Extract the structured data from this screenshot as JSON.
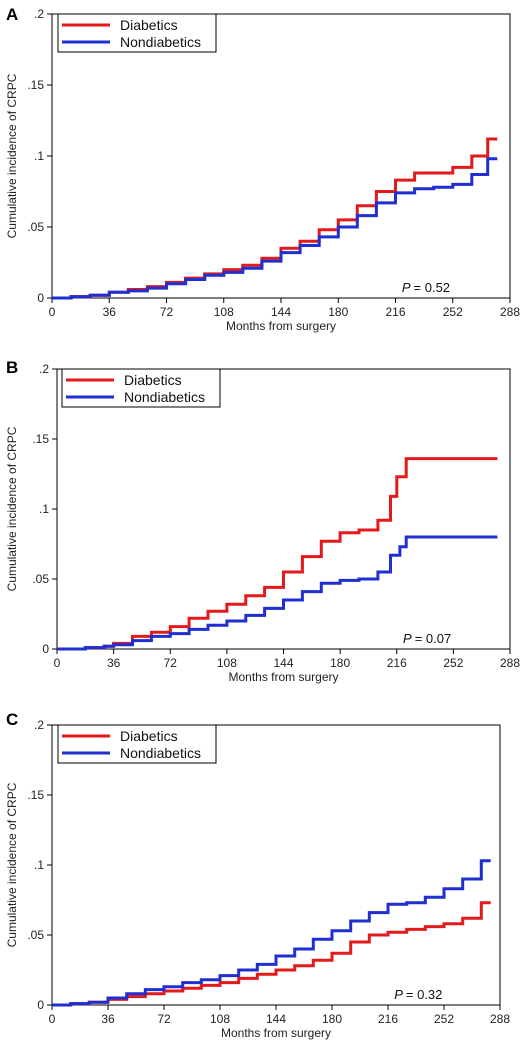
{
  "chart_data": [
    {
      "panel": "A",
      "type": "line",
      "step": true,
      "xlabel": "Months from surgery",
      "ylabel": "Cumulative incidence of CRPC",
      "xticks": [
        "0",
        "36",
        "72",
        "108",
        "144",
        "180",
        "216",
        "252",
        "288"
      ],
      "yticks": [
        "0",
        ".05",
        ".1",
        ".15",
        ".2"
      ],
      "xlim": [
        0,
        288
      ],
      "ylim": [
        0,
        0.2
      ],
      "grid": false,
      "legend_position": "top-left",
      "p_label": "P",
      "p_value": "= 0.52",
      "series": [
        {
          "name": "Diabetics",
          "color": "#e31a1c",
          "points": [
            [
              0,
              0
            ],
            [
              12,
              0.001
            ],
            [
              24,
              0.002
            ],
            [
              36,
              0.004
            ],
            [
              48,
              0.006
            ],
            [
              60,
              0.008
            ],
            [
              72,
              0.011
            ],
            [
              84,
              0.014
            ],
            [
              96,
              0.017
            ],
            [
              108,
              0.02
            ],
            [
              120,
              0.023
            ],
            [
              132,
              0.028
            ],
            [
              144,
              0.035
            ],
            [
              156,
              0.04
            ],
            [
              168,
              0.048
            ],
            [
              180,
              0.055
            ],
            [
              192,
              0.065
            ],
            [
              204,
              0.075
            ],
            [
              216,
              0.083
            ],
            [
              228,
              0.088
            ],
            [
              240,
              0.088
            ],
            [
              252,
              0.092
            ],
            [
              264,
              0.1
            ],
            [
              274,
              0.112
            ],
            [
              280,
              0.112
            ]
          ]
        },
        {
          "name": "Nondiabetics",
          "color": "#1f2fd1",
          "points": [
            [
              0,
              0
            ],
            [
              12,
              0.001
            ],
            [
              24,
              0.002
            ],
            [
              36,
              0.004
            ],
            [
              48,
              0.005
            ],
            [
              60,
              0.007
            ],
            [
              72,
              0.01
            ],
            [
              84,
              0.013
            ],
            [
              96,
              0.016
            ],
            [
              108,
              0.018
            ],
            [
              120,
              0.021
            ],
            [
              132,
              0.026
            ],
            [
              144,
              0.032
            ],
            [
              156,
              0.037
            ],
            [
              168,
              0.043
            ],
            [
              180,
              0.05
            ],
            [
              192,
              0.058
            ],
            [
              204,
              0.067
            ],
            [
              216,
              0.074
            ],
            [
              228,
              0.077
            ],
            [
              240,
              0.078
            ],
            [
              252,
              0.08
            ],
            [
              264,
              0.087
            ],
            [
              274,
              0.098
            ],
            [
              280,
              0.098
            ]
          ]
        }
      ]
    },
    {
      "panel": "B",
      "type": "line",
      "step": true,
      "xlabel": "Months from surgery",
      "ylabel": "Cumulative incidence of CRPC",
      "xticks": [
        "0",
        "36",
        "72",
        "108",
        "144",
        "180",
        "216",
        "252",
        "288"
      ],
      "yticks": [
        "0",
        ".05",
        ".1",
        ".15",
        ".2"
      ],
      "xlim": [
        0,
        288
      ],
      "ylim": [
        0,
        0.2
      ],
      "grid": false,
      "legend_position": "top-left",
      "p_label": "P",
      "p_value": "= 0.07",
      "series": [
        {
          "name": "Diabetics",
          "color": "#e31a1c",
          "points": [
            [
              0,
              0
            ],
            [
              18,
              0.001
            ],
            [
              30,
              0.002
            ],
            [
              36,
              0.004
            ],
            [
              48,
              0.009
            ],
            [
              60,
              0.012
            ],
            [
              72,
              0.016
            ],
            [
              84,
              0.022
            ],
            [
              96,
              0.027
            ],
            [
              108,
              0.032
            ],
            [
              120,
              0.038
            ],
            [
              132,
              0.044
            ],
            [
              144,
              0.055
            ],
            [
              156,
              0.066
            ],
            [
              168,
              0.077
            ],
            [
              180,
              0.083
            ],
            [
              192,
              0.085
            ],
            [
              204,
              0.092
            ],
            [
              212,
              0.109
            ],
            [
              216,
              0.123
            ],
            [
              222,
              0.136
            ],
            [
              234,
              0.136
            ],
            [
              250,
              0.136
            ],
            [
              270,
              0.136
            ],
            [
              280,
              0.136
            ]
          ]
        },
        {
          "name": "Nondiabetics",
          "color": "#1f2fd1",
          "points": [
            [
              0,
              0
            ],
            [
              18,
              0.001
            ],
            [
              30,
              0.002
            ],
            [
              36,
              0.003
            ],
            [
              48,
              0.006
            ],
            [
              60,
              0.009
            ],
            [
              72,
              0.011
            ],
            [
              84,
              0.014
            ],
            [
              96,
              0.017
            ],
            [
              108,
              0.02
            ],
            [
              120,
              0.024
            ],
            [
              132,
              0.029
            ],
            [
              144,
              0.035
            ],
            [
              156,
              0.041
            ],
            [
              168,
              0.047
            ],
            [
              180,
              0.049
            ],
            [
              192,
              0.05
            ],
            [
              204,
              0.055
            ],
            [
              212,
              0.067
            ],
            [
              218,
              0.073
            ],
            [
              222,
              0.08
            ],
            [
              234,
              0.08
            ],
            [
              250,
              0.08
            ],
            [
              270,
              0.08
            ],
            [
              280,
              0.08
            ]
          ]
        }
      ]
    },
    {
      "panel": "C",
      "type": "line",
      "step": true,
      "xlabel": "Months from surgery",
      "ylabel": "Cumulative incidence of CRPC",
      "xticks": [
        "0",
        "36",
        "72",
        "108",
        "144",
        "180",
        "216",
        "252",
        "288"
      ],
      "yticks": [
        "0",
        ".05",
        ".1",
        ".15",
        ".2"
      ],
      "xlim": [
        0,
        288
      ],
      "ylim": [
        0,
        0.2
      ],
      "grid": false,
      "legend_position": "top-left",
      "p_label": "P",
      "p_value": "= 0.32",
      "series": [
        {
          "name": "Diabetics",
          "color": "#e31a1c",
          "points": [
            [
              0,
              0
            ],
            [
              12,
              0.001
            ],
            [
              24,
              0.002
            ],
            [
              36,
              0.004
            ],
            [
              48,
              0.006
            ],
            [
              60,
              0.008
            ],
            [
              72,
              0.01
            ],
            [
              84,
              0.012
            ],
            [
              96,
              0.014
            ],
            [
              108,
              0.016
            ],
            [
              120,
              0.019
            ],
            [
              132,
              0.022
            ],
            [
              144,
              0.025
            ],
            [
              156,
              0.028
            ],
            [
              168,
              0.032
            ],
            [
              180,
              0.037
            ],
            [
              192,
              0.045
            ],
            [
              204,
              0.05
            ],
            [
              216,
              0.052
            ],
            [
              228,
              0.054
            ],
            [
              240,
              0.056
            ],
            [
              252,
              0.058
            ],
            [
              264,
              0.062
            ],
            [
              276,
              0.073
            ],
            [
              282,
              0.073
            ]
          ]
        },
        {
          "name": "Nondiabetics",
          "color": "#1f2fd1",
          "points": [
            [
              0,
              0
            ],
            [
              12,
              0.001
            ],
            [
              24,
              0.002
            ],
            [
              36,
              0.005
            ],
            [
              48,
              0.008
            ],
            [
              60,
              0.011
            ],
            [
              72,
              0.013
            ],
            [
              84,
              0.016
            ],
            [
              96,
              0.018
            ],
            [
              108,
              0.021
            ],
            [
              120,
              0.025
            ],
            [
              132,
              0.029
            ],
            [
              144,
              0.035
            ],
            [
              156,
              0.04
            ],
            [
              168,
              0.047
            ],
            [
              180,
              0.053
            ],
            [
              192,
              0.06
            ],
            [
              204,
              0.066
            ],
            [
              216,
              0.072
            ],
            [
              228,
              0.073
            ],
            [
              240,
              0.077
            ],
            [
              252,
              0.083
            ],
            [
              264,
              0.09
            ],
            [
              276,
              0.103
            ],
            [
              282,
              0.103
            ]
          ]
        }
      ]
    }
  ]
}
